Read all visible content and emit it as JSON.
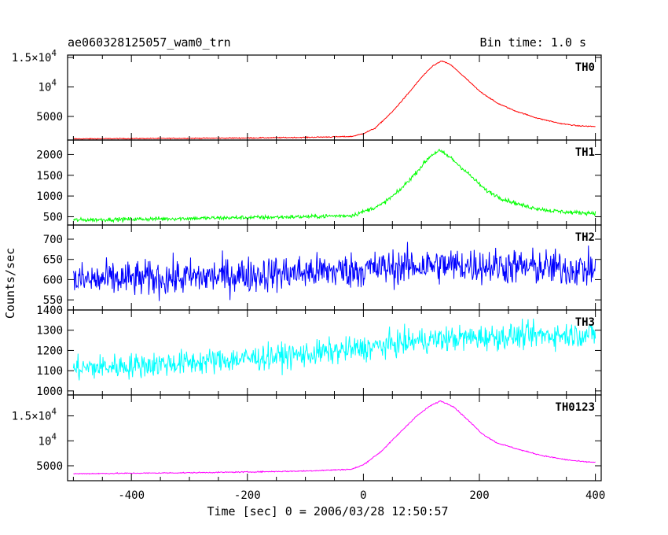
{
  "header": {
    "obs_id": "ae060328125057_wam0_trn",
    "bin_time": "Bin time: 1.0 s"
  },
  "chart_data": {
    "type": "line",
    "xlabel": "Time [sec] 0 = 2006/03/28 12:50:57",
    "ylabel": "Counts/sec",
    "xlim": [
      -510,
      410
    ],
    "x_ticks": [
      "-400",
      "-200",
      "0",
      "200",
      "400"
    ],
    "x_tick_values": [
      -400,
      -200,
      0,
      200,
      400
    ],
    "panels": [
      {
        "name": "TH0",
        "color": "#ff0000",
        "ylim": [
          1000,
          15400
        ],
        "tick_labels": [
          "1.5×10^4",
          "10^4",
          "5000"
        ],
        "tick_values": [
          15000,
          10000,
          5000
        ],
        "noise": 60,
        "points": [
          [
            -500,
            1200
          ],
          [
            -400,
            1250
          ],
          [
            -300,
            1300
          ],
          [
            -200,
            1350
          ],
          [
            -100,
            1450
          ],
          [
            -20,
            1600
          ],
          [
            0,
            2100
          ],
          [
            20,
            3000
          ],
          [
            50,
            5800
          ],
          [
            80,
            9200
          ],
          [
            100,
            11600
          ],
          [
            120,
            13600
          ],
          [
            135,
            14400
          ],
          [
            150,
            13800
          ],
          [
            175,
            11600
          ],
          [
            200,
            9300
          ],
          [
            230,
            7300
          ],
          [
            260,
            6000
          ],
          [
            300,
            4700
          ],
          [
            340,
            3800
          ],
          [
            370,
            3400
          ],
          [
            400,
            3300
          ]
        ]
      },
      {
        "name": "TH1",
        "color": "#00ff00",
        "ylim": [
          300,
          2350
        ],
        "tick_labels": [
          "2000",
          "1500",
          "1000",
          "500"
        ],
        "tick_values": [
          2000,
          1500,
          1000,
          500
        ],
        "noise": 35,
        "points": [
          [
            -500,
            420
          ],
          [
            -400,
            440
          ],
          [
            -300,
            460
          ],
          [
            -200,
            480
          ],
          [
            -100,
            500
          ],
          [
            -20,
            530
          ],
          [
            0,
            620
          ],
          [
            30,
            780
          ],
          [
            60,
            1100
          ],
          [
            90,
            1550
          ],
          [
            115,
            1960
          ],
          [
            130,
            2100
          ],
          [
            150,
            1930
          ],
          [
            180,
            1550
          ],
          [
            210,
            1150
          ],
          [
            240,
            930
          ],
          [
            280,
            750
          ],
          [
            320,
            650
          ],
          [
            360,
            600
          ],
          [
            400,
            590
          ]
        ]
      },
      {
        "name": "TH2",
        "color": "#0000ff",
        "ylim": [
          525,
          735
        ],
        "tick_labels": [
          "700",
          "650",
          "600",
          "550"
        ],
        "tick_values": [
          700,
          650,
          600,
          550
        ],
        "noise": 32,
        "points": [
          [
            -500,
            598
          ],
          [
            -300,
            605
          ],
          [
            -200,
            612
          ],
          [
            -100,
            618
          ],
          [
            0,
            625
          ],
          [
            100,
            635
          ],
          [
            200,
            635
          ],
          [
            300,
            630
          ],
          [
            400,
            625
          ]
        ]
      },
      {
        "name": "TH3",
        "color": "#00ffff",
        "ylim": [
          980,
          1400
        ],
        "tick_labels": [
          "1400",
          "1300",
          "1200",
          "1100",
          "1000"
        ],
        "tick_values": [
          1400,
          1300,
          1200,
          1100,
          1000
        ],
        "noise": 45,
        "points": [
          [
            -500,
            1110
          ],
          [
            -400,
            1125
          ],
          [
            -300,
            1140
          ],
          [
            -200,
            1160
          ],
          [
            -100,
            1180
          ],
          [
            0,
            1210
          ],
          [
            100,
            1250
          ],
          [
            200,
            1265
          ],
          [
            300,
            1275
          ],
          [
            400,
            1280
          ]
        ]
      },
      {
        "name": "TH0123",
        "color": "#ff00ff",
        "ylim": [
          2000,
          19200
        ],
        "tick_labels": [
          "1.5×10^4",
          "10^4",
          "5000"
        ],
        "tick_values": [
          15000,
          10000,
          5000
        ],
        "noise": 80,
        "points": [
          [
            -500,
            3400
          ],
          [
            -400,
            3500
          ],
          [
            -300,
            3600
          ],
          [
            -200,
            3750
          ],
          [
            -100,
            3950
          ],
          [
            -20,
            4300
          ],
          [
            0,
            5200
          ],
          [
            30,
            7800
          ],
          [
            60,
            11300
          ],
          [
            90,
            14800
          ],
          [
            115,
            17000
          ],
          [
            133,
            18000
          ],
          [
            155,
            16900
          ],
          [
            180,
            14200
          ],
          [
            205,
            11400
          ],
          [
            230,
            9600
          ],
          [
            270,
            8200
          ],
          [
            310,
            7000
          ],
          [
            350,
            6200
          ],
          [
            380,
            5800
          ],
          [
            400,
            5700
          ]
        ]
      }
    ]
  }
}
